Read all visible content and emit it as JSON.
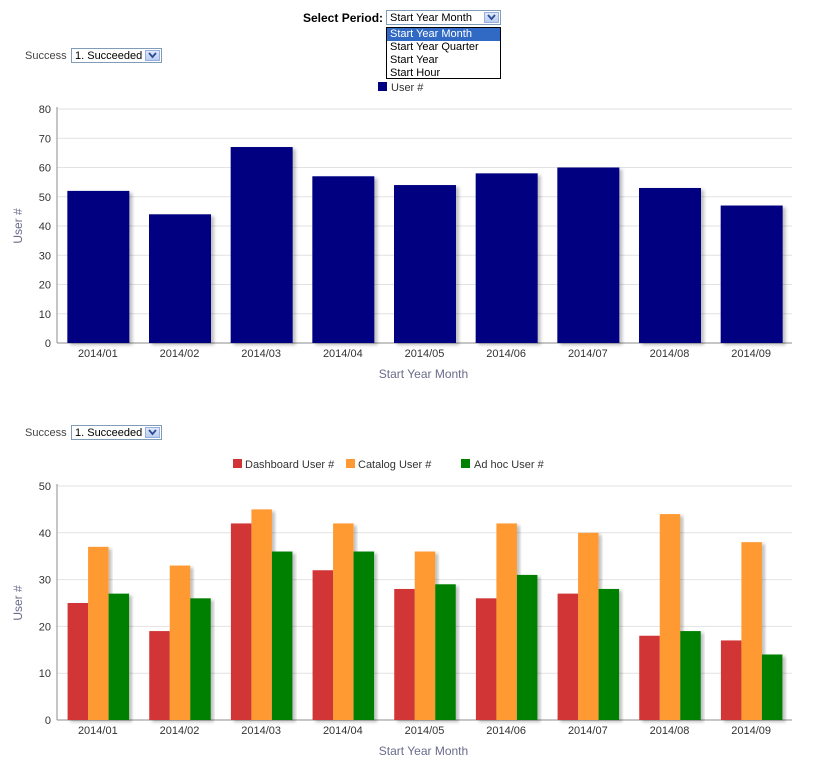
{
  "period": {
    "label": "Select Period:",
    "selected": "Start Year Month",
    "options": [
      "Start Year Month",
      "Start Year Quarter",
      "Start Year",
      "Start Hour"
    ]
  },
  "filter1": {
    "label": "Success",
    "value": "1. Succeeded"
  },
  "filter2": {
    "label": "Success",
    "value": "1. Succeeded"
  },
  "colors": {
    "navy": "#000080",
    "red": "#d13434",
    "orange": "#ff9933",
    "green": "#008000"
  },
  "chart_data": [
    {
      "type": "bar",
      "categories": [
        "2014/01",
        "2014/02",
        "2014/03",
        "2014/04",
        "2014/05",
        "2014/06",
        "2014/07",
        "2014/08",
        "2014/09"
      ],
      "series": [
        {
          "name": "User #",
          "values": [
            52,
            44,
            67,
            57,
            54,
            58,
            60,
            53,
            47
          ],
          "color": "#000080"
        }
      ],
      "xlabel": "Start Year Month",
      "ylabel": "User #",
      "ylim": [
        0,
        80
      ],
      "yticks": [
        0,
        10,
        20,
        30,
        40,
        50,
        60,
        70,
        80
      ],
      "legend": "top-center",
      "grid": true
    },
    {
      "type": "bar",
      "categories": [
        "2014/01",
        "2014/02",
        "2014/03",
        "2014/04",
        "2014/05",
        "2014/06",
        "2014/07",
        "2014/08",
        "2014/09"
      ],
      "series": [
        {
          "name": "Dashboard User #",
          "values": [
            25,
            19,
            42,
            32,
            28,
            26,
            27,
            18,
            17
          ],
          "color": "#d13434"
        },
        {
          "name": "Catalog User #",
          "values": [
            37,
            33,
            45,
            42,
            36,
            42,
            40,
            44,
            38
          ],
          "color": "#ff9933"
        },
        {
          "name": "Ad hoc User #",
          "values": [
            27,
            26,
            36,
            36,
            29,
            31,
            28,
            19,
            14
          ],
          "color": "#008000"
        }
      ],
      "xlabel": "Start Year Month",
      "ylabel": "User #",
      "ylim": [
        0,
        50
      ],
      "yticks": [
        0,
        10,
        20,
        30,
        40,
        50
      ],
      "legend": "top-center",
      "grid": true
    }
  ]
}
